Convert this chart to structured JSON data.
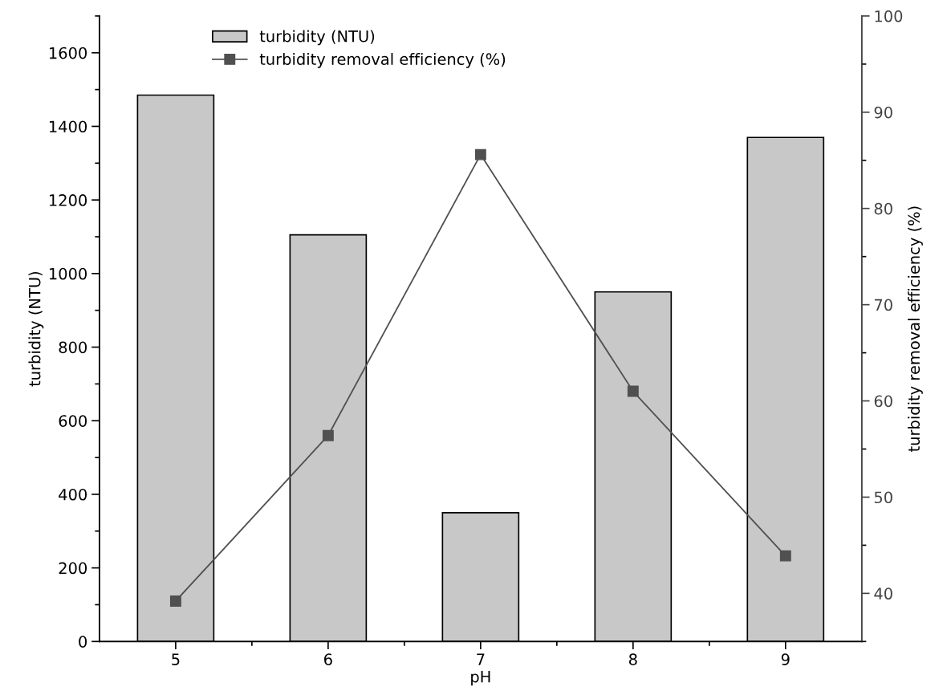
{
  "chart_data": {
    "type": "bar",
    "xlabel": "pH",
    "ylabel": "turbidity (NTU)",
    "y2label": "turbidity removal efficiency (%)",
    "categories": [
      "5",
      "6",
      "7",
      "8",
      "9"
    ],
    "series": [
      {
        "name": "turbidity (NTU)",
        "color": "#c8c8c8",
        "values": [
          1485,
          1105,
          350,
          950,
          1370
        ]
      },
      {
        "name": "turbidity removal efficiency (%)",
        "type": "line",
        "axis": "y2",
        "color": "#505050",
        "marker": "square",
        "line_style": "solid",
        "values": [
          39.2,
          56.4,
          85.6,
          61.0,
          43.9
        ]
      }
    ],
    "ylim": [
      0,
      1700
    ],
    "yticks": [
      0,
      200,
      400,
      600,
      800,
      1000,
      1200,
      1400,
      1600
    ],
    "y2lim": [
      35,
      100
    ],
    "y2ticks": [
      40,
      50,
      60,
      70,
      80,
      90,
      100
    ],
    "legend": "top left",
    "grid": false
  }
}
